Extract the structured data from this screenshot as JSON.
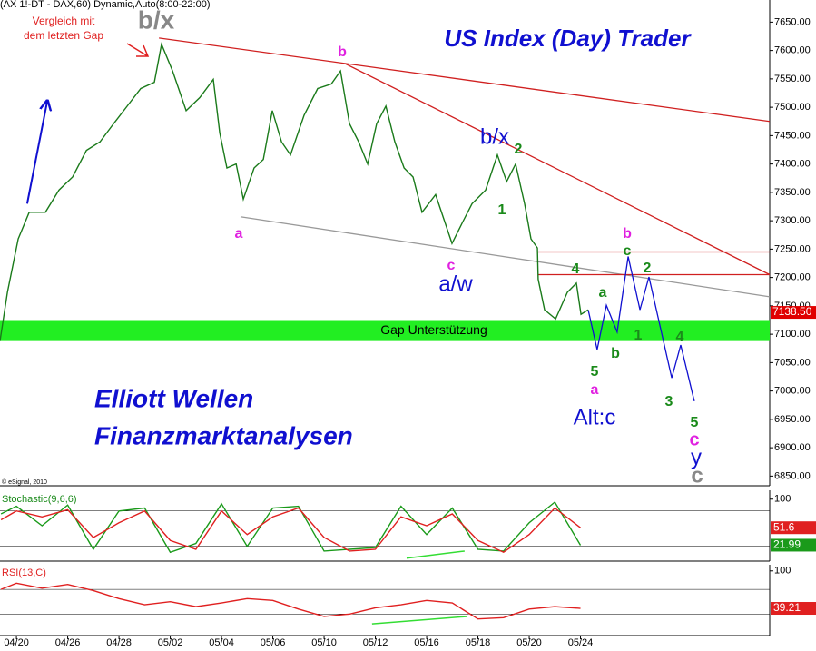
{
  "header": "(AX 1!-DT - DAX,60) Dynamic,Auto(8:00-22:00)",
  "copyright": "© eSignal, 2010",
  "chart_data": [
    {
      "type": "line",
      "title": "US Index (Day) Trader",
      "subtitle": [
        "Elliott Wellen",
        "Finanzmarktanalysen"
      ],
      "note": [
        "Vergleich mit",
        "dem letzten Gap"
      ],
      "x": [
        -0.64,
        -0.35,
        0.07,
        0.5,
        1.13,
        1.66,
        2.19,
        2.73,
        3.26,
        3.79,
        4.32,
        4.85,
        5.38,
        5.66,
        6.09,
        6.62,
        7.15,
        7.68,
        7.93,
        8.21,
        8.57,
        8.85,
        9.27,
        9.63,
        9.98,
        10.34,
        10.69,
        11.22,
        11.75,
        12.28,
        12.64,
        12.99,
        13.35,
        13.7,
        14.05,
        14.41,
        14.76,
        15.12,
        15.47,
        15.82,
        16.35,
        16.99,
        17.42,
        17.77,
        18.3,
        18.76,
        19.12,
        19.47,
        19.82,
        20.07,
        20.32,
        20.35,
        20.6,
        21.03,
        21.49,
        21.84,
        22.02,
        22.3
      ],
      "series": [
        {
          "color": "#1a7a1a",
          "values": [
            7088,
            7174,
            7268,
            7315,
            7315,
            7354,
            7377,
            7424,
            7439,
            7471,
            7502,
            7533,
            7544,
            7611,
            7564,
            7494,
            7517,
            7549,
            7455,
            7393,
            7400,
            7338,
            7393,
            7408,
            7494,
            7439,
            7416,
            7486,
            7533,
            7541,
            7564,
            7471,
            7439,
            7400,
            7471,
            7502,
            7439,
            7393,
            7377,
            7315,
            7346,
            7260,
            7299,
            7330,
            7354,
            7416,
            7369,
            7400,
            7330,
            7268,
            7252,
            7197,
            7143,
            7127,
            7174,
            7190,
            7135,
            7143
          ]
        }
      ],
      "last_price": {
        "value": 7138.5,
        "label": "7138.50",
        "color": "#e00000"
      },
      "xlim": [
        -0.64,
        29.38
      ],
      "ylim": [
        6833,
        7689
      ],
      "yticks": [
        {
          "value": 6850,
          "label": "6850.00"
        },
        {
          "value": 6900,
          "label": "6900.00"
        },
        {
          "value": 6950,
          "label": "6950.00"
        },
        {
          "value": 7000,
          "label": "7000.00"
        },
        {
          "value": 7050,
          "label": "7050.00"
        },
        {
          "value": 7100,
          "label": "7100.00"
        },
        {
          "value": 7150,
          "label": "7150.00"
        },
        {
          "value": 7200,
          "label": "7200.00"
        },
        {
          "value": 7250,
          "label": "7250.00"
        },
        {
          "value": 7300,
          "label": "7300.00"
        },
        {
          "value": 7350,
          "label": "7350.00"
        },
        {
          "value": 7400,
          "label": "7400.00"
        },
        {
          "value": 7450,
          "label": "7450.00"
        },
        {
          "value": 7500,
          "label": "7500.00"
        },
        {
          "value": 7550,
          "label": "7550.00"
        },
        {
          "value": 7600,
          "label": "7600.00"
        },
        {
          "value": 7650,
          "label": "7650.00"
        }
      ],
      "gap": {
        "label": "Gap Unterstützung",
        "range": [
          7088,
          7125
        ],
        "color": "#22ee22"
      },
      "trendlines": [
        {
          "color": "#d02020",
          "points": [
            [
              5.56,
              7622
            ],
            [
              29.38,
              7475
            ]
          ]
        },
        {
          "color": "#d02020",
          "points": [
            [
              12.81,
              7577
            ],
            [
              29.38,
              7205
            ]
          ]
        },
        {
          "color": "#999999",
          "points": [
            [
              8.74,
              7307
            ],
            [
              29.38,
              7166
            ]
          ]
        },
        {
          "color": "#d02020",
          "points": [
            [
              20.35,
              7245
            ],
            [
              29.38,
              7245
            ]
          ]
        },
        {
          "color": "#d02020",
          "points": [
            [
              20.35,
              7205
            ],
            [
              29.38,
              7205
            ]
          ]
        },
        {
          "color": "#1010d0",
          "points": [
            [
              22.3,
              7143
            ],
            [
              22.65,
              7073
            ],
            [
              23.01,
              7151
            ],
            [
              23.43,
              7104
            ],
            [
              23.86,
              7237
            ],
            [
              24.32,
              7143
            ],
            [
              24.67,
              7201
            ],
            [
              25.56,
              7023
            ],
            [
              25.91,
              7081
            ],
            [
              26.44,
              6982
            ]
          ]
        }
      ],
      "arrow": {
        "color": "#1010d0",
        "points": [
          [
            0.42,
            7330
          ],
          [
            1.2,
            7510
          ]
        ]
      },
      "waves": [
        "b/x",
        "b",
        "a",
        "b/x",
        "2",
        "1",
        "c",
        "a/w",
        "4",
        "a",
        "b",
        "c",
        "2",
        "b",
        "1",
        "4",
        "5",
        "a",
        "Alt:c",
        "3",
        "5",
        "c",
        "y",
        "c"
      ]
    },
    {
      "type": "line",
      "title": "Stochastic(9,6,6)",
      "x": [
        -0.6,
        0,
        1,
        2,
        3,
        4,
        5,
        6,
        7,
        8,
        9,
        10,
        11,
        12,
        13,
        14,
        15,
        16,
        17,
        18,
        19,
        20,
        21,
        22
      ],
      "series": [
        {
          "color": "#1a9a1a",
          "values": [
            75,
            88,
            55,
            90,
            15,
            80,
            85,
            10,
            25,
            92,
            20,
            85,
            88,
            12,
            15,
            18,
            88,
            40,
            85,
            15,
            12,
            60,
            95,
            21.99
          ]
        },
        {
          "color": "#e02020",
          "values": [
            65,
            80,
            70,
            82,
            35,
            60,
            80,
            30,
            15,
            80,
            40,
            70,
            85,
            35,
            12,
            15,
            70,
            55,
            75,
            30,
            10,
            40,
            85,
            51.6
          ]
        }
      ],
      "xlim": [
        -0.64,
        29.38
      ],
      "ylim": [
        -5,
        115
      ],
      "yticks": [
        100
      ],
      "levels": [
        20,
        80
      ],
      "divergence": {
        "color": "#33dd33",
        "points": [
          [
            15.22,
            0
          ],
          [
            17.48,
            12
          ]
        ]
      }
    },
    {
      "type": "line",
      "title": "RSI(13,C)",
      "x": [
        -0.6,
        0,
        1,
        2,
        3,
        4,
        5,
        6,
        7,
        8,
        9,
        10,
        11,
        12,
        13,
        14,
        15,
        16,
        17,
        18,
        19,
        20,
        21,
        22
      ],
      "series": [
        {
          "color": "#e02020",
          "values": [
            70,
            80,
            72,
            78,
            68,
            55,
            45,
            50,
            42,
            48,
            55,
            52,
            38,
            26,
            30,
            40,
            45,
            52,
            48,
            22,
            24,
            38,
            42,
            39.21
          ]
        }
      ],
      "xlim": [
        -0.64,
        29.38
      ],
      "ylim": [
        -5,
        110
      ],
      "yticks": [
        100
      ],
      "levels": [
        30,
        70
      ],
      "divergence": {
        "color": "#33dd33",
        "points": [
          [
            13.87,
            14
          ],
          [
            17.58,
            26
          ]
        ]
      },
      "xticks": [
        {
          "value": 0,
          "label": "04/20"
        },
        {
          "value": 2,
          "label": "04/26"
        },
        {
          "value": 4,
          "label": "04/28"
        },
        {
          "value": 6,
          "label": "05/02"
        },
        {
          "value": 8,
          "label": "05/04"
        },
        {
          "value": 10,
          "label": "05/06"
        },
        {
          "value": 12,
          "label": "05/10"
        },
        {
          "value": 14,
          "label": "05/12"
        },
        {
          "value": 16,
          "label": "05/16"
        },
        {
          "value": 18,
          "label": "05/18"
        },
        {
          "value": 20,
          "label": "05/20"
        },
        {
          "value": 22,
          "label": "05/24"
        }
      ]
    }
  ]
}
